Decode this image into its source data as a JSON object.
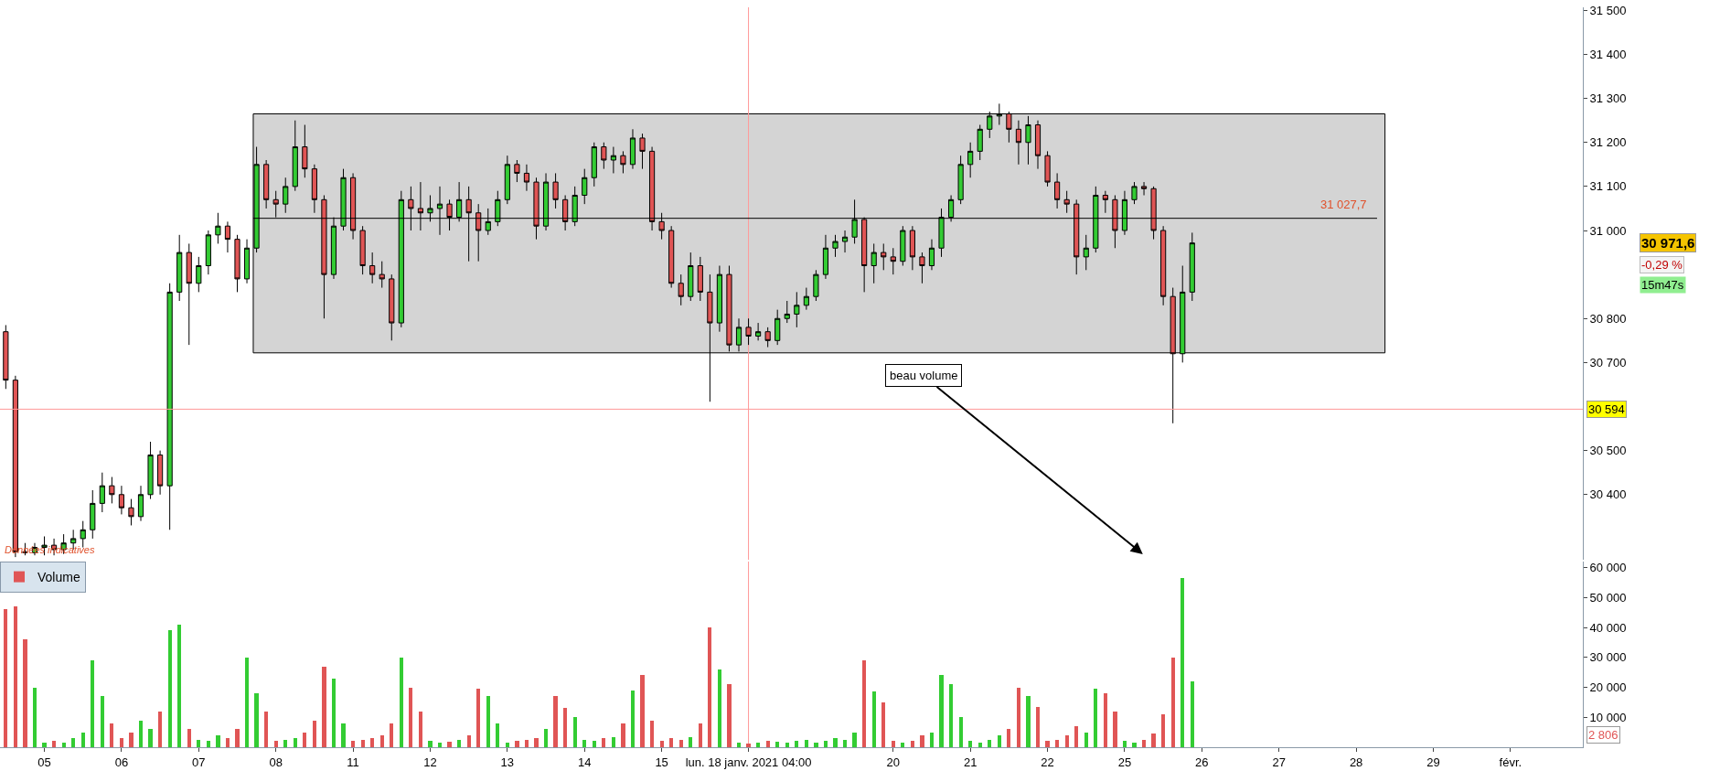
{
  "chart_data": [
    {
      "type": "candlestick",
      "categories": [
        null,
        null,
        null,
        null,
        "05",
        null,
        null,
        null,
        null,
        null,
        null,
        null,
        "06",
        null,
        null,
        null,
        null,
        null,
        null,
        null,
        "07",
        null,
        null,
        null,
        null,
        null,
        null,
        null,
        "08",
        null,
        null,
        null,
        null,
        null,
        null,
        null,
        "11",
        null,
        null,
        null,
        null,
        null,
        null,
        null,
        "12",
        null,
        null,
        null,
        null,
        null,
        null,
        null,
        "13",
        null,
        null,
        null,
        null,
        null,
        null,
        null,
        "14",
        null,
        null,
        null,
        null,
        null,
        null,
        null,
        "15",
        null,
        null,
        null,
        null,
        null,
        null,
        null,
        null,
        "lun. 18 janv. 2021 04:00",
        null,
        null,
        null,
        null,
        null,
        null,
        null,
        null,
        null,
        null,
        null,
        null,
        null,
        null,
        "20",
        null,
        null,
        null,
        null,
        null,
        null,
        null,
        "21",
        null,
        null,
        null,
        null,
        null,
        null,
        null,
        "22",
        null,
        null,
        null,
        null,
        null,
        null,
        null,
        "25",
        null,
        null,
        null,
        null,
        null,
        null,
        null,
        "26",
        null,
        null,
        null,
        null,
        null,
        null,
        null,
        "27",
        null,
        null,
        null,
        null,
        null,
        null,
        null,
        "28",
        null,
        null,
        null,
        null,
        null,
        null,
        null,
        "29",
        null,
        null,
        null,
        null,
        null,
        null,
        null,
        "févr.",
        null,
        null,
        null,
        null,
        null,
        null,
        null
      ],
      "ohlc": [
        [
          30770,
          30785,
          30640,
          30660
        ],
        [
          30660,
          30670,
          30258,
          30270
        ],
        [
          30270,
          30290,
          30262,
          30268
        ],
        [
          30268,
          30290,
          30262,
          30280
        ],
        [
          30280,
          30305,
          30262,
          30285
        ],
        [
          30285,
          30300,
          30262,
          30275
        ],
        [
          30275,
          30310,
          30265,
          30290
        ],
        [
          30290,
          30320,
          30275,
          30300
        ],
        [
          30300,
          30340,
          30280,
          30320
        ],
        [
          30320,
          30410,
          30300,
          30380
        ],
        [
          30380,
          30450,
          30360,
          30420
        ],
        [
          30420,
          30440,
          30380,
          30400
        ],
        [
          30400,
          30420,
          30355,
          30370
        ],
        [
          30370,
          30390,
          30330,
          30350
        ],
        [
          30350,
          30420,
          30340,
          30400
        ],
        [
          30400,
          30520,
          30390,
          30490
        ],
        [
          30490,
          30500,
          30400,
          30420
        ],
        [
          30420,
          30880,
          30320,
          30860
        ],
        [
          30860,
          30990,
          30840,
          30950
        ],
        [
          30950,
          30970,
          30740,
          30880
        ],
        [
          30880,
          30940,
          30860,
          30920
        ],
        [
          30920,
          31000,
          30900,
          30990
        ],
        [
          30990,
          31040,
          30970,
          31010
        ],
        [
          31010,
          31020,
          30950,
          30980
        ],
        [
          30980,
          30990,
          30860,
          30890
        ],
        [
          30890,
          30980,
          30880,
          30960
        ],
        [
          30960,
          31190,
          30950,
          31150
        ],
        [
          31150,
          31160,
          31050,
          31070
        ],
        [
          31070,
          31090,
          31030,
          31060
        ],
        [
          31060,
          31120,
          31040,
          31100
        ],
        [
          31100,
          31250,
          31090,
          31190
        ],
        [
          31190,
          31240,
          31120,
          31140
        ],
        [
          31140,
          31150,
          31040,
          31070
        ],
        [
          31070,
          31080,
          30800,
          30900
        ],
        [
          30900,
          31030,
          30890,
          31010
        ],
        [
          31010,
          31140,
          31000,
          31120
        ],
        [
          31120,
          31130,
          30980,
          31000
        ],
        [
          31000,
          31010,
          30900,
          30920
        ],
        [
          30920,
          30950,
          30880,
          30900
        ],
        [
          30900,
          30930,
          30870,
          30890
        ],
        [
          30890,
          30900,
          30750,
          30790
        ],
        [
          30790,
          31090,
          30780,
          31070
        ],
        [
          31070,
          31100,
          31000,
          31050
        ],
        [
          31050,
          31110,
          31000,
          31040
        ],
        [
          31040,
          31080,
          31020,
          31050
        ],
        [
          31050,
          31100,
          30990,
          31060
        ],
        [
          31060,
          31070,
          31000,
          31030
        ],
        [
          31030,
          31110,
          31020,
          31070
        ],
        [
          31070,
          31100,
          30930,
          31040
        ],
        [
          31040,
          31060,
          30930,
          31000
        ],
        [
          31000,
          31050,
          30990,
          31020
        ],
        [
          31020,
          31090,
          31010,
          31070
        ],
        [
          31070,
          31170,
          31060,
          31150
        ],
        [
          31150,
          31160,
          31110,
          31130
        ],
        [
          31130,
          31150,
          31090,
          31110
        ],
        [
          31110,
          31120,
          30980,
          31010
        ],
        [
          31010,
          31130,
          31000,
          31110
        ],
        [
          31110,
          31130,
          31050,
          31070
        ],
        [
          31070,
          31080,
          31000,
          31020
        ],
        [
          31020,
          31100,
          31010,
          31080
        ],
        [
          31080,
          31140,
          31060,
          31120
        ],
        [
          31120,
          31200,
          31100,
          31190
        ],
        [
          31190,
          31200,
          31140,
          31160
        ],
        [
          31160,
          31190,
          31130,
          31170
        ],
        [
          31170,
          31180,
          31130,
          31150
        ],
        [
          31150,
          31230,
          31140,
          31210
        ],
        [
          31210,
          31220,
          31140,
          31180
        ],
        [
          31180,
          31190,
          31000,
          31020
        ],
        [
          31020,
          31040,
          30980,
          31000
        ],
        [
          31000,
          31010,
          30870,
          30880
        ],
        [
          30880,
          30900,
          30830,
          30850
        ],
        [
          30850,
          30950,
          30840,
          30920
        ],
        [
          30920,
          30940,
          30840,
          30860
        ],
        [
          30860,
          30900,
          30611,
          30790
        ],
        [
          30790,
          30920,
          30770,
          30900
        ],
        [
          30900,
          30920,
          30725,
          30740
        ],
        [
          30740,
          30800,
          30725,
          30780
        ],
        [
          30780,
          30800,
          30740,
          30760
        ],
        [
          30760,
          30790,
          30750,
          30770
        ],
        [
          30770,
          30780,
          30735,
          30750
        ],
        [
          30750,
          30820,
          30740,
          30800
        ],
        [
          30800,
          30840,
          30790,
          30810
        ],
        [
          30810,
          30860,
          30780,
          30830
        ],
        [
          30830,
          30870,
          30820,
          30850
        ],
        [
          30850,
          30910,
          30840,
          30900
        ],
        [
          30900,
          30990,
          30890,
          30960
        ],
        [
          30960,
          30990,
          30940,
          30975
        ],
        [
          30975,
          31000,
          30950,
          30985
        ],
        [
          30985,
          31070,
          30970,
          31025
        ],
        [
          31025,
          31030,
          30860,
          30920
        ],
        [
          30920,
          30970,
          30880,
          30950
        ],
        [
          30950,
          30970,
          30910,
          30940
        ],
        [
          30940,
          30960,
          30900,
          30930
        ],
        [
          30930,
          31010,
          30920,
          31000
        ],
        [
          31000,
          31010,
          30910,
          30940
        ],
        [
          30940,
          30950,
          30880,
          30920
        ],
        [
          30920,
          30980,
          30910,
          30960
        ],
        [
          30960,
          31050,
          30940,
          31030
        ],
        [
          31030,
          31080,
          31020,
          31070
        ],
        [
          31070,
          31170,
          31060,
          31150
        ],
        [
          31150,
          31200,
          31120,
          31180
        ],
        [
          31180,
          31240,
          31160,
          31230
        ],
        [
          31230,
          31270,
          31210,
          31260
        ],
        [
          31260,
          31288,
          31240,
          31265
        ],
        [
          31265,
          31270,
          31200,
          31230
        ],
        [
          31230,
          31250,
          31150,
          31200
        ],
        [
          31200,
          31260,
          31150,
          31240
        ],
        [
          31240,
          31250,
          31140,
          31170
        ],
        [
          31170,
          31180,
          31100,
          31110
        ],
        [
          31110,
          31130,
          31050,
          31070
        ],
        [
          31070,
          31090,
          31040,
          31060
        ],
        [
          31060,
          31070,
          30900,
          30940
        ],
        [
          30940,
          30990,
          30910,
          30960
        ],
        [
          30960,
          31100,
          30950,
          31080
        ],
        [
          31080,
          31090,
          31040,
          31070
        ],
        [
          31070,
          31080,
          30960,
          31000
        ],
        [
          31000,
          31090,
          30990,
          31070
        ],
        [
          31070,
          31110,
          31060,
          31100
        ],
        [
          31100,
          31110,
          31080,
          31095
        ],
        [
          31095,
          31100,
          30980,
          31000
        ],
        [
          31000,
          31010,
          30830,
          30850
        ],
        [
          30850,
          30870,
          30562,
          30720
        ],
        [
          30720,
          30920,
          30700,
          30860
        ],
        [
          30860,
          30995,
          30840,
          30971.6
        ],
        null,
        null,
        null,
        null,
        null,
        null,
        null,
        null,
        null,
        null,
        null,
        null,
        null,
        null,
        null,
        null,
        null,
        null,
        null,
        null,
        null,
        null,
        null,
        null,
        null,
        null,
        null,
        null,
        null,
        null,
        null,
        null,
        null,
        null,
        null,
        null,
        null,
        null,
        null,
        null
      ],
      "ylim": [
        30252,
        31507
      ],
      "yticks": [
        {
          "value": 30400,
          "label": "30 400"
        },
        {
          "value": 30500,
          "label": "30 500"
        },
        {
          "value": 30700,
          "label": "30 700"
        },
        {
          "value": 30800,
          "label": "30 800"
        },
        {
          "value": 31000,
          "label": "31 000"
        },
        {
          "value": 31100,
          "label": "31 100"
        },
        {
          "value": 31200,
          "label": "31 200"
        },
        {
          "value": 31300,
          "label": "31 300"
        },
        {
          "value": 31400,
          "label": "31 400"
        },
        {
          "value": 31500,
          "label": "31 500"
        }
      ],
      "tick_labels": "y",
      "bands": [
        {
          "axis": "y",
          "from": 30722,
          "to": 31265,
          "color": "#d4d4d4"
        }
      ],
      "ref_lines": [
        {
          "axis": "y",
          "value": 31027.7,
          "label": "31 027,7",
          "color": "#000000"
        },
        {
          "axis": "y",
          "value": 30594,
          "label": "30 594",
          "color": "#ff9999"
        },
        {
          "axis": "x",
          "value": "lun. 18 janv. 2021 04:00",
          "color": "#ff9999"
        }
      ],
      "annotations": [
        "beau volume",
        "30 971,6",
        "-0,29 %",
        "15m47s",
        "Données indicatives"
      ]
    },
    {
      "type": "bar",
      "categories": [
        null,
        null,
        null,
        null,
        "05",
        null,
        null,
        null,
        null,
        null,
        null,
        null,
        "06",
        null,
        null,
        null,
        null,
        null,
        null,
        null,
        "07",
        null,
        null,
        null,
        null,
        null,
        null,
        null,
        "08",
        null,
        null,
        null,
        null,
        null,
        null,
        null,
        "11",
        null,
        null,
        null,
        null,
        null,
        null,
        null,
        "12",
        null,
        null,
        null,
        null,
        null,
        null,
        null,
        "13",
        null,
        null,
        null,
        null,
        null,
        null,
        null,
        "14",
        null,
        null,
        null,
        null,
        null,
        null,
        null,
        "15",
        null,
        null,
        null,
        null,
        null,
        null,
        null,
        null,
        "lun. 18 janv. 2021 04:00",
        null,
        null,
        null,
        null,
        null,
        null,
        null,
        null,
        null,
        null,
        null,
        null,
        null,
        null,
        "20",
        null,
        null,
        null,
        null,
        null,
        null,
        null,
        "21",
        null,
        null,
        null,
        null,
        null,
        null,
        null,
        "22",
        null,
        null,
        null,
        null,
        null,
        null,
        null,
        "25",
        null,
        null,
        null,
        null,
        null,
        null,
        null,
        "26",
        null,
        null,
        null,
        null,
        null,
        null,
        null,
        "27",
        null,
        null,
        null,
        null,
        null,
        null,
        null,
        "28",
        null,
        null,
        null,
        null,
        null,
        null,
        null,
        "29",
        null,
        null,
        null,
        null,
        null,
        null,
        null,
        "févr.",
        null,
        null,
        null,
        null,
        null,
        null,
        null
      ],
      "series": [
        {
          "name": "Volume",
          "values": [
            46000,
            47000,
            36000,
            20000,
            1500,
            2000,
            1500,
            3000,
            5000,
            29000,
            17000,
            8000,
            3000,
            5000,
            9000,
            6000,
            12000,
            39000,
            41000,
            6000,
            2500,
            2000,
            4000,
            3000,
            6000,
            30000,
            18000,
            12000,
            2000,
            2500,
            3000,
            5000,
            9000,
            27000,
            23000,
            8000,
            2000,
            2500,
            3000,
            4000,
            8000,
            30000,
            20000,
            12000,
            2000,
            1500,
            1800,
            2500,
            4000,
            19500,
            17000,
            8000,
            1500,
            2000,
            2500,
            3000,
            6000,
            17000,
            13000,
            10000,
            2500,
            2000,
            3000,
            3500,
            8000,
            19000,
            24000,
            9000,
            2000,
            3000,
            2500,
            3500,
            8000,
            40000,
            26000,
            21000,
            1500,
            1200,
            1500,
            2000,
            1800,
            1500,
            2000,
            2500,
            1500,
            2000,
            3000,
            2500,
            5000,
            29000,
            18500,
            15000,
            2000,
            1500,
            2000,
            4000,
            5000,
            24000,
            21000,
            10000,
            2000,
            1500,
            2500,
            4000,
            6000,
            20000,
            17000,
            13500,
            2000,
            2500,
            4000,
            7000,
            5000,
            19500,
            18000,
            12000,
            2000,
            1500,
            2500,
            4500,
            11000,
            30000,
            56600,
            22000,
            null,
            null,
            null,
            null,
            null,
            null,
            null,
            null,
            null,
            null,
            null,
            null,
            null,
            null,
            null,
            null,
            null,
            null,
            null,
            null,
            null,
            null,
            null,
            null,
            null,
            null,
            null,
            null,
            null,
            null,
            null,
            null,
            null,
            null,
            null,
            null,
            null,
            null,
            null,
            null
          ],
          "colors": [
            "#e05555",
            "#e05555",
            "#e05555",
            "#33cc33",
            "#33cc33",
            "#e05555",
            "#33cc33",
            "#33cc33",
            "#33cc33",
            "#33cc33",
            "#33cc33",
            "#e05555",
            "#e05555",
            "#e05555",
            "#33cc33",
            "#33cc33",
            "#e05555",
            "#33cc33",
            "#33cc33",
            "#e05555",
            "#33cc33",
            "#33cc33",
            "#33cc33",
            "#e05555",
            "#e05555",
            "#33cc33",
            "#33cc33",
            "#e05555",
            "#e05555",
            "#33cc33",
            "#33cc33",
            "#e05555",
            "#e05555",
            "#e05555",
            "#33cc33",
            "#33cc33",
            "#e05555",
            "#e05555",
            "#e05555",
            "#e05555",
            "#e05555",
            "#33cc33",
            "#e05555",
            "#e05555",
            "#33cc33",
            "#33cc33",
            "#e05555",
            "#33cc33",
            "#e05555",
            "#e05555",
            "#33cc33",
            "#33cc33",
            "#33cc33",
            "#e05555",
            "#e05555",
            "#e05555",
            "#33cc33",
            "#e05555",
            "#e05555",
            "#33cc33",
            "#33cc33",
            "#33cc33",
            "#e05555",
            "#33cc33",
            "#e05555",
            "#33cc33",
            "#e05555",
            "#e05555",
            "#e05555",
            "#e05555",
            "#e05555",
            "#33cc33",
            "#e05555",
            "#e05555",
            "#33cc33",
            "#e05555",
            "#33cc33",
            "#e05555",
            "#33cc33",
            "#e05555",
            "#33cc33",
            "#33cc33",
            "#33cc33",
            "#33cc33",
            "#33cc33",
            "#33cc33",
            "#33cc33",
            "#33cc33",
            "#33cc33",
            "#e05555",
            "#33cc33",
            "#e05555",
            "#e05555",
            "#33cc33",
            "#e05555",
            "#e05555",
            "#33cc33",
            "#33cc33",
            "#33cc33",
            "#33cc33",
            "#33cc33",
            "#33cc33",
            "#33cc33",
            "#33cc33",
            "#e05555",
            "#e05555",
            "#33cc33",
            "#e05555",
            "#e05555",
            "#e05555",
            "#e05555",
            "#e05555",
            "#33cc33",
            "#33cc33",
            "#e05555",
            "#e05555",
            "#33cc33",
            "#33cc33",
            "#e05555",
            "#e05555",
            "#e05555",
            "#e05555",
            "#33cc33",
            "#33cc33",
            null,
            null,
            null,
            null,
            null,
            null,
            null,
            null,
            null,
            null,
            null,
            null,
            null,
            null,
            null,
            null,
            null,
            null,
            null,
            null,
            null,
            null,
            null,
            null,
            null,
            null,
            null,
            null,
            null,
            null,
            null,
            null,
            null,
            null,
            null,
            null,
            null,
            null,
            null,
            null
          ]
        }
      ],
      "ylim": [
        0,
        62000
      ],
      "yticks": [
        {
          "value": 10000,
          "label": "10 000"
        },
        {
          "value": 20000,
          "label": "20 000"
        },
        {
          "value": 30000,
          "label": "30 000"
        },
        {
          "value": 40000,
          "label": "40 000"
        },
        {
          "value": 50000,
          "label": "50 000"
        },
        {
          "value": 60000,
          "label": "60 000"
        }
      ],
      "legend": "top left",
      "ref_lines": [
        {
          "axis": "x",
          "value": "lun. 18 janv. 2021 04:00",
          "color": "#ff9999"
        }
      ],
      "annotations": [
        "2 806"
      ]
    }
  ]
}
